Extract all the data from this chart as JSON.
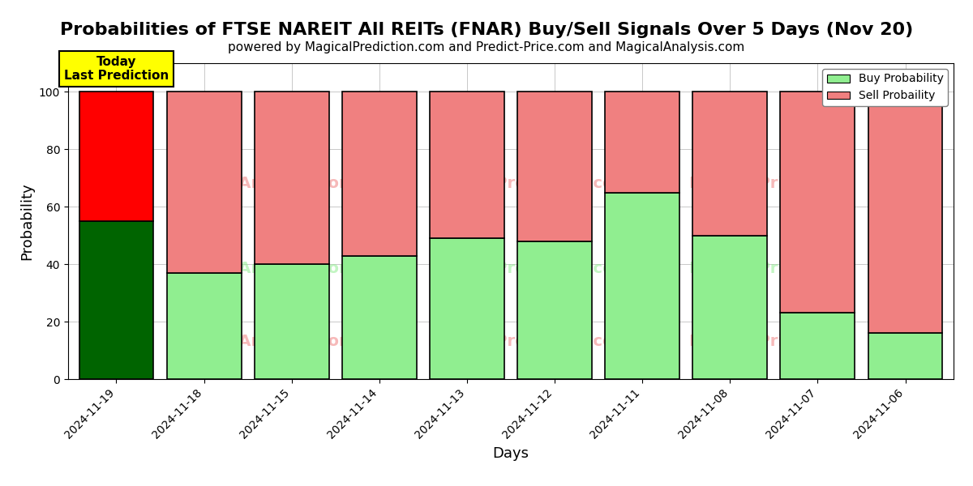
{
  "title": "Probabilities of FTSE NAREIT All REITs (FNAR) Buy/Sell Signals Over 5 Days (Nov 20)",
  "subtitle": "powered by MagicalPrediction.com and Predict-Price.com and MagicalAnalysis.com",
  "xlabel": "Days",
  "ylabel": "Probability",
  "dates": [
    "2024-11-19",
    "2024-11-18",
    "2024-11-15",
    "2024-11-14",
    "2024-11-13",
    "2024-11-12",
    "2024-11-11",
    "2024-11-08",
    "2024-11-07",
    "2024-11-06"
  ],
  "buy_probs": [
    55,
    37,
    40,
    43,
    49,
    48,
    65,
    50,
    23,
    16
  ],
  "sell_probs": [
    45,
    63,
    60,
    57,
    51,
    52,
    35,
    50,
    77,
    84
  ],
  "today_buy_color": "#006400",
  "today_sell_color": "#FF0000",
  "buy_color": "#90EE90",
  "sell_color": "#F08080",
  "today_label": "Today\nLast Prediction",
  "today_label_bg": "#FFFF00",
  "legend_buy_label": "Buy Probability",
  "legend_sell_label": "Sell Probaility",
  "ylim": [
    0,
    110
  ],
  "yticks": [
    0,
    20,
    40,
    60,
    80,
    100
  ],
  "dashed_line_y": 110,
  "background_color": "#ffffff",
  "bar_edge_color": "#000000",
  "bar_linewidth": 1.2,
  "title_fontsize": 16,
  "subtitle_fontsize": 11,
  "axis_label_fontsize": 13
}
